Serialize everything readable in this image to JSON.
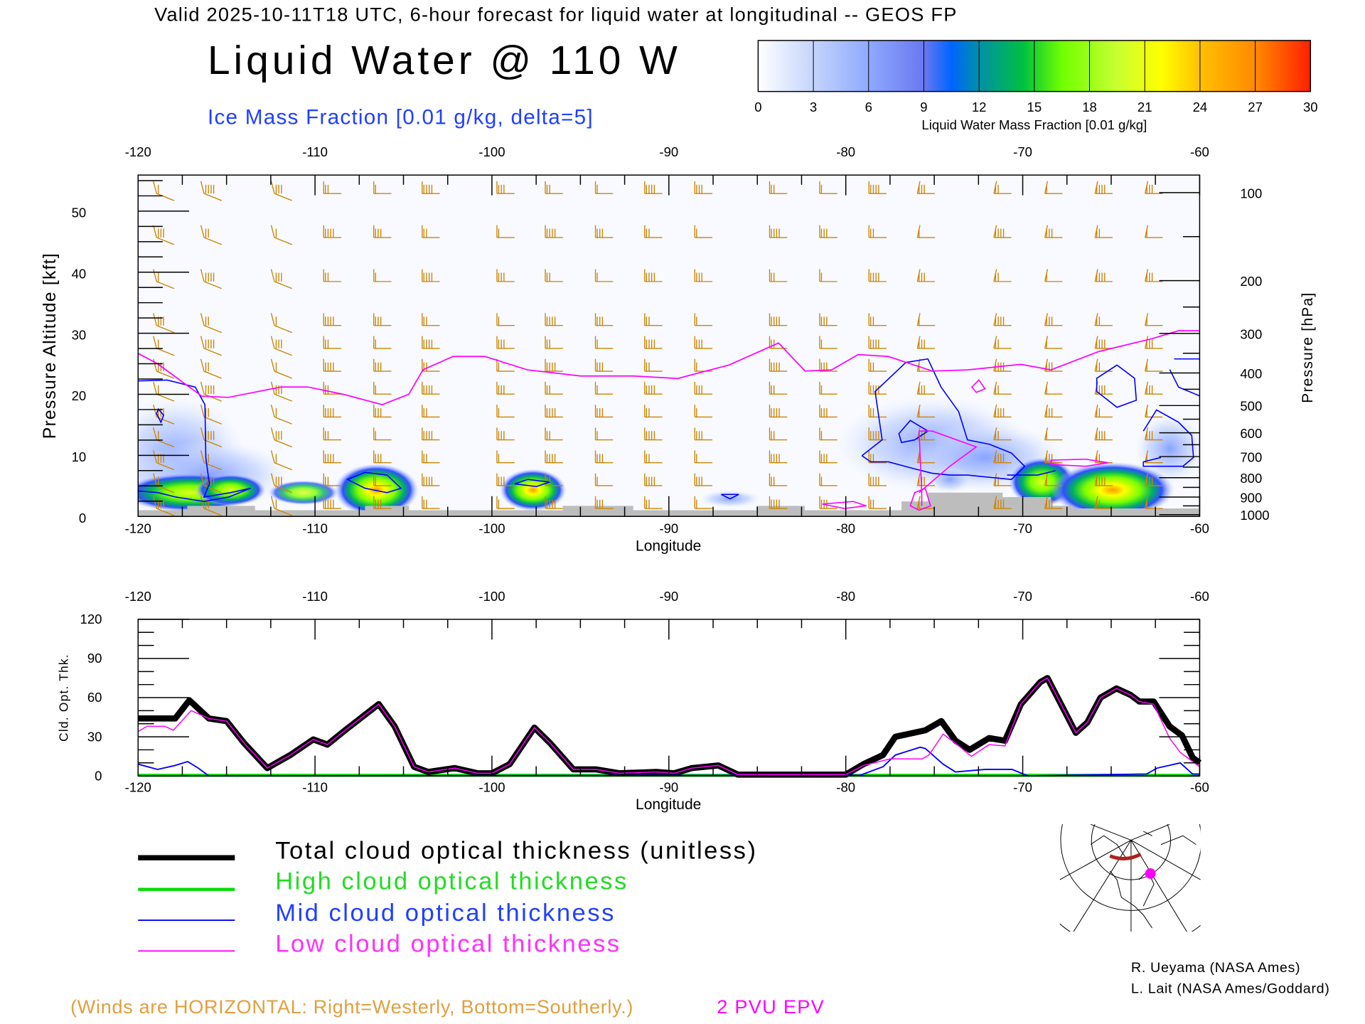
{
  "header": {
    "subtitle": "Valid 2025-10-11T18 UTC, 6-hour forecast for liquid water at longitudinal -- GEOS FP",
    "title": "Liquid Water @ 110 W",
    "ice_label": "Ice Mass Fraction [0.01 g/kg, delta=5]"
  },
  "colorbar": {
    "ticks": [
      "0",
      "3",
      "6",
      "9",
      "12",
      "15",
      "18",
      "21",
      "24",
      "27",
      "30"
    ],
    "label": "Liquid Water Mass Fraction [0.01 g/kg]"
  },
  "colors": {
    "total": "#000000",
    "high": "#00dd00",
    "mid": "#0000ff",
    "low": "#ff00ff",
    "wind": "#cc8400",
    "terrain": "#bdbdbd"
  },
  "section_plot": {
    "lon_ticks": [
      "-120",
      "-110",
      "-100",
      "-90",
      "-80",
      "-70",
      "-60"
    ],
    "alt_ticks": [
      "0",
      "10",
      "20",
      "30",
      "40",
      "50"
    ],
    "alt_label": "Pressure Altitude [kft]",
    "pres_ticks": [
      "100",
      "200",
      "300",
      "400",
      "500",
      "600",
      "700",
      "800",
      "900",
      "1000"
    ],
    "pres_label": "Pressure [hPa]",
    "xlabel": "Longitude",
    "epv_2pvu": [
      [
        -120,
        26.7
      ],
      [
        -118.9,
        25
      ],
      [
        -116.4,
        19.7
      ],
      [
        -114.9,
        19.5
      ],
      [
        -111.9,
        21.2
      ],
      [
        -110.4,
        21.2
      ],
      [
        -108.4,
        20
      ],
      [
        -106.2,
        18.3
      ],
      [
        -104.7,
        20
      ],
      [
        -103.9,
        24
      ],
      [
        -102.2,
        26.2
      ],
      [
        -100.4,
        26.2
      ],
      [
        -98,
        24
      ],
      [
        -95,
        23
      ],
      [
        -92,
        23
      ],
      [
        -89.5,
        22.6
      ],
      [
        -86.6,
        24.8
      ],
      [
        -83.8,
        28.4
      ],
      [
        -82.3,
        23.8
      ],
      [
        -80.8,
        24
      ],
      [
        -79.3,
        26.5
      ],
      [
        -77.6,
        26.2
      ],
      [
        -75.1,
        23.8
      ],
      [
        -73.1,
        24
      ],
      [
        -70.1,
        24.9
      ],
      [
        -68.4,
        24
      ],
      [
        -65.7,
        27
      ],
      [
        -62.7,
        29.1
      ],
      [
        -61.2,
        30.4
      ],
      [
        -60,
        30.4
      ]
    ]
  },
  "chart_data": {
    "type": "line",
    "title": "Cloud optical thickness",
    "xlabel": "Longitude",
    "ylabel": "Cld. Opt. Thk.",
    "xlim": [
      -120,
      -60
    ],
    "ylim": [
      0,
      120
    ],
    "x_ticks": [
      "-120",
      "-110",
      "-100",
      "-90",
      "-80",
      "-70",
      "-60"
    ],
    "y_ticks": [
      "0",
      "30",
      "60",
      "90",
      "120"
    ],
    "series": [
      {
        "name": "Total cloud optical thickness (unitless)",
        "color": "#000000",
        "points": [
          [
            -120,
            44
          ],
          [
            -117.9,
            44
          ],
          [
            -117.1,
            58
          ],
          [
            -116,
            44
          ],
          [
            -115,
            42
          ],
          [
            -114,
            25
          ],
          [
            -112.7,
            6
          ],
          [
            -111.4,
            16
          ],
          [
            -110.1,
            28
          ],
          [
            -109.3,
            24
          ],
          [
            -108.3,
            35
          ],
          [
            -106.4,
            55
          ],
          [
            -105.5,
            38
          ],
          [
            -104.4,
            7
          ],
          [
            -103.6,
            3
          ],
          [
            -102.1,
            6
          ],
          [
            -100.8,
            2
          ],
          [
            -100,
            2
          ],
          [
            -99,
            9
          ],
          [
            -97.6,
            37
          ],
          [
            -96.7,
            25
          ],
          [
            -95.4,
            5
          ],
          [
            -94.1,
            5
          ],
          [
            -92.8,
            2
          ],
          [
            -90.7,
            3
          ],
          [
            -89.7,
            2
          ],
          [
            -88.7,
            6
          ],
          [
            -87.2,
            8
          ],
          [
            -86.1,
            1
          ],
          [
            -80,
            1
          ],
          [
            -79,
            9
          ],
          [
            -77.9,
            16
          ],
          [
            -77.2,
            30
          ],
          [
            -75.5,
            35
          ],
          [
            -74.6,
            42
          ],
          [
            -73.8,
            27
          ],
          [
            -73,
            20
          ],
          [
            -71.9,
            29
          ],
          [
            -71,
            27
          ],
          [
            -70.1,
            55
          ],
          [
            -69,
            72
          ],
          [
            -68.6,
            75
          ],
          [
            -67,
            33
          ],
          [
            -66.35,
            41
          ],
          [
            -65.6,
            60
          ],
          [
            -64.7,
            67
          ],
          [
            -63.9,
            62
          ],
          [
            -63.4,
            57
          ],
          [
            -62.6,
            57
          ],
          [
            -61.7,
            38
          ],
          [
            -61,
            31
          ],
          [
            -60.4,
            14
          ],
          [
            -60,
            10
          ]
        ]
      },
      {
        "name": "High cloud optical thickness",
        "color": "#00dd00",
        "points": [
          [
            -120,
            0.5
          ],
          [
            -60,
            0.5
          ]
        ]
      },
      {
        "name": "Mid cloud optical thickness",
        "color": "#0000ff",
        "points": [
          [
            -120,
            9
          ],
          [
            -118.9,
            5
          ],
          [
            -117.9,
            8
          ],
          [
            -117.2,
            11
          ],
          [
            -116.6,
            6
          ],
          [
            -116,
            0
          ],
          [
            -79.2,
            0.5
          ],
          [
            -77.9,
            7
          ],
          [
            -77.2,
            16
          ],
          [
            -75.8,
            22
          ],
          [
            -75.5,
            21
          ],
          [
            -74.5,
            9
          ],
          [
            -73.8,
            3
          ],
          [
            -72.1,
            5
          ],
          [
            -70.6,
            5
          ],
          [
            -69.7,
            0
          ],
          [
            -63,
            1.5
          ],
          [
            -62.4,
            6
          ],
          [
            -61.1,
            10
          ],
          [
            -60.4,
            1.5
          ],
          [
            -60,
            1.5
          ]
        ]
      },
      {
        "name": "Low cloud optical thickness",
        "color": "#ff00ff",
        "points": [
          [
            -120,
            34
          ],
          [
            -119.5,
            38
          ],
          [
            -118.5,
            38
          ],
          [
            -118,
            35
          ],
          [
            -117,
            50
          ],
          [
            -116,
            44
          ],
          [
            -115,
            42
          ],
          [
            -114,
            25
          ],
          [
            -112.7,
            6
          ],
          [
            -111.4,
            16
          ],
          [
            -110.1,
            28
          ],
          [
            -109.3,
            24
          ],
          [
            -108.3,
            35
          ],
          [
            -106.4,
            55
          ],
          [
            -105.5,
            38
          ],
          [
            -104.4,
            7
          ],
          [
            -103.6,
            3
          ],
          [
            -102.1,
            6
          ],
          [
            -100.8,
            2
          ],
          [
            -100,
            2
          ],
          [
            -99,
            9
          ],
          [
            -97.6,
            37
          ],
          [
            -96.7,
            25
          ],
          [
            -95.4,
            5
          ],
          [
            -94.1,
            5
          ],
          [
            -92.8,
            2
          ],
          [
            -90.7,
            3
          ],
          [
            -89.7,
            2
          ],
          [
            -88.7,
            6
          ],
          [
            -87.2,
            8
          ],
          [
            -86.1,
            1
          ],
          [
            -80,
            1
          ],
          [
            -79,
            8
          ],
          [
            -77.5,
            13
          ],
          [
            -75.7,
            13
          ],
          [
            -75.3,
            16
          ],
          [
            -74.5,
            32
          ],
          [
            -73.8,
            25
          ],
          [
            -72.9,
            15
          ],
          [
            -71.9,
            24
          ],
          [
            -71,
            23
          ],
          [
            -70.1,
            55
          ],
          [
            -69,
            72
          ],
          [
            -68.6,
            75
          ],
          [
            -67,
            33
          ],
          [
            -66.35,
            41
          ],
          [
            -65.6,
            60
          ],
          [
            -64.7,
            67
          ],
          [
            -63.9,
            62
          ],
          [
            -63.4,
            57
          ],
          [
            -62.6,
            55
          ],
          [
            -61.7,
            29
          ],
          [
            -61.1,
            18
          ],
          [
            -60,
            7
          ]
        ]
      }
    ]
  },
  "legend": {
    "total": "Total cloud optical thickness (unitless)",
    "high": "High cloud optical thickness",
    "mid": "Mid cloud optical thickness",
    "low": "Low cloud optical thickness"
  },
  "footer": {
    "winds_note": "(Winds are HORIZONTAL: Right=Westerly, Bottom=Southerly.)",
    "epv_note": "2 PVU EPV",
    "credit1": "R. Ueyama (NASA Ames)",
    "credit2": "L. Lait (NASA Ames/Goddard)"
  }
}
